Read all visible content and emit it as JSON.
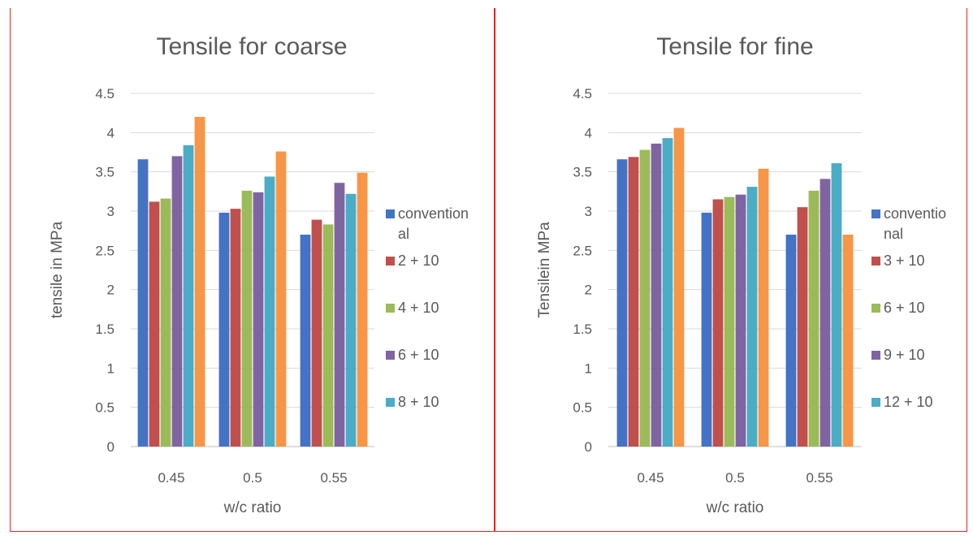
{
  "charts": [
    {
      "type": "bar",
      "title": "Tensile for coarse",
      "xlabel": "w/c ratio",
      "ylabel": "tensile  in MPa",
      "ylim": [
        0,
        4.5
      ],
      "yticks": [
        "0",
        "0.5",
        "1",
        "1.5",
        "2",
        "2.5",
        "3",
        "3.5",
        "4",
        "4.5"
      ],
      "categories": [
        "0.45",
        "0.5",
        "0.55"
      ],
      "grid": true,
      "legend_position": "right",
      "series": [
        {
          "name": "conventional",
          "legend_lines": [
            "convention",
            "al"
          ],
          "color": "#4472c4",
          "values": [
            3.66,
            2.98,
            2.7
          ]
        },
        {
          "name": "2 + 10",
          "legend_lines": [
            "2 + 10"
          ],
          "color": "#c0504d",
          "values": [
            3.12,
            3.03,
            2.89
          ]
        },
        {
          "name": "4 + 10",
          "legend_lines": [
            "4 + 10"
          ],
          "color": "#9bbb59",
          "values": [
            3.16,
            3.26,
            2.83
          ]
        },
        {
          "name": "6 + 10",
          "legend_lines": [
            "6 + 10"
          ],
          "color": "#8064a2",
          "values": [
            3.7,
            3.24,
            3.36
          ]
        },
        {
          "name": "8 + 10",
          "legend_lines": [
            "8 + 10"
          ],
          "color": "#4bacc6",
          "values": [
            3.84,
            3.44,
            3.22
          ]
        },
        {
          "name": "",
          "legend_lines": [],
          "color": "#f79646",
          "values": [
            4.2,
            3.76,
            3.49
          ]
        }
      ]
    },
    {
      "type": "bar",
      "title": "Tensile for fine",
      "xlabel": "w/c ratio",
      "ylabel": "Tensilein MPa",
      "ylim": [
        0,
        4.5
      ],
      "yticks": [
        "0",
        "0.5",
        "1",
        "1.5",
        "2",
        "2.5",
        "3",
        "3.5",
        "4",
        "4.5"
      ],
      "categories": [
        "0.45",
        "0.5",
        "0.55"
      ],
      "grid": true,
      "legend_position": "right",
      "series": [
        {
          "name": "conventional",
          "legend_lines": [
            "conventio",
            "nal"
          ],
          "color": "#4472c4",
          "values": [
            3.66,
            2.98,
            2.7
          ]
        },
        {
          "name": "3 + 10",
          "legend_lines": [
            "3 + 10"
          ],
          "color": "#c0504d",
          "values": [
            3.69,
            3.15,
            3.05
          ]
        },
        {
          "name": "6 + 10",
          "legend_lines": [
            "6 + 10"
          ],
          "color": "#9bbb59",
          "values": [
            3.78,
            3.18,
            3.26
          ]
        },
        {
          "name": "9 + 10",
          "legend_lines": [
            "9 + 10"
          ],
          "color": "#8064a2",
          "values": [
            3.86,
            3.21,
            3.41
          ]
        },
        {
          "name": "12 + 10",
          "legend_lines": [
            "12 + 10"
          ],
          "color": "#4bacc6",
          "values": [
            3.93,
            3.31,
            3.61
          ]
        },
        {
          "name": "",
          "legend_lines": [],
          "color": "#f79646",
          "values": [
            4.06,
            3.54,
            2.7
          ]
        }
      ]
    }
  ],
  "chart_data": [
    {
      "type": "bar",
      "title": "Tensile for coarse",
      "xlabel": "w/c ratio",
      "ylabel": "tensile  in MPa",
      "ylim": [
        0,
        4.5
      ],
      "categories": [
        "0.45",
        "0.5",
        "0.55"
      ],
      "series": [
        {
          "name": "conventional",
          "values": [
            3.66,
            2.98,
            2.7
          ]
        },
        {
          "name": "2 + 10",
          "values": [
            3.12,
            3.03,
            2.89
          ]
        },
        {
          "name": "4 + 10",
          "values": [
            3.16,
            3.26,
            2.83
          ]
        },
        {
          "name": "6 + 10",
          "values": [
            3.7,
            3.24,
            3.36
          ]
        },
        {
          "name": "8 + 10",
          "values": [
            3.84,
            3.44,
            3.22
          ]
        },
        {
          "values": [
            4.2,
            3.76,
            3.49
          ]
        }
      ]
    },
    {
      "type": "bar",
      "title": "Tensile for fine",
      "xlabel": "w/c ratio",
      "ylabel": "Tensilein MPa",
      "ylim": [
        0,
        4.5
      ],
      "categories": [
        "0.45",
        "0.5",
        "0.55"
      ],
      "series": [
        {
          "name": "conventional",
          "values": [
            3.66,
            2.98,
            2.7
          ]
        },
        {
          "name": "3 + 10",
          "values": [
            3.69,
            3.15,
            3.05
          ]
        },
        {
          "name": "6 + 10",
          "values": [
            3.78,
            3.18,
            3.26
          ]
        },
        {
          "name": "9 + 10",
          "values": [
            3.86,
            3.21,
            3.41
          ]
        },
        {
          "name": "12 + 10",
          "values": [
            3.93,
            3.31,
            3.61
          ]
        },
        {
          "values": [
            4.06,
            3.54,
            2.7
          ]
        }
      ]
    }
  ]
}
